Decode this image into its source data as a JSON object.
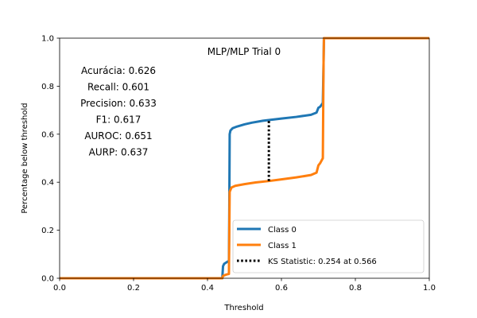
{
  "chart_data": {
    "type": "line",
    "title": "MLP/MLP Trial 0",
    "xlabel": "Threshold",
    "ylabel": "Percentage below threshold",
    "xlim": [
      0.0,
      1.0
    ],
    "ylim": [
      0.0,
      1.0
    ],
    "xticks": [
      "0.0",
      "0.2",
      "0.4",
      "0.6",
      "0.8",
      "1.0"
    ],
    "yticks": [
      "0.0",
      "0.2",
      "0.4",
      "0.6",
      "0.8",
      "1.0"
    ],
    "grid": false,
    "legend_position": "lower-right",
    "metrics": [
      "Acurácia: 0.626",
      "Recall: 0.601",
      "Precision: 0.633",
      "F1: 0.617",
      "AUROC: 0.651",
      "AURP: 0.637"
    ],
    "series": [
      {
        "name": "Class 0",
        "color": "#1f77b4",
        "points": [
          [
            0.0,
            0.0
          ],
          [
            0.44,
            0.0
          ],
          [
            0.442,
            0.05
          ],
          [
            0.445,
            0.06
          ],
          [
            0.45,
            0.065
          ],
          [
            0.455,
            0.07
          ],
          [
            0.458,
            0.07
          ],
          [
            0.459,
            0.3
          ],
          [
            0.46,
            0.6
          ],
          [
            0.462,
            0.615
          ],
          [
            0.468,
            0.625
          ],
          [
            0.48,
            0.632
          ],
          [
            0.5,
            0.641
          ],
          [
            0.52,
            0.648
          ],
          [
            0.55,
            0.656
          ],
          [
            0.566,
            0.659
          ],
          [
            0.6,
            0.665
          ],
          [
            0.64,
            0.672
          ],
          [
            0.68,
            0.681
          ],
          [
            0.695,
            0.69
          ],
          [
            0.7,
            0.71
          ],
          [
            0.705,
            0.715
          ],
          [
            0.712,
            0.73
          ],
          [
            0.714,
            0.9
          ],
          [
            0.715,
            1.0
          ],
          [
            1.0,
            1.0
          ]
        ]
      },
      {
        "name": "Class 1",
        "color": "#ff7f0e",
        "points": [
          [
            0.0,
            0.0
          ],
          [
            0.44,
            0.0
          ],
          [
            0.442,
            0.01
          ],
          [
            0.45,
            0.015
          ],
          [
            0.458,
            0.018
          ],
          [
            0.459,
            0.2
          ],
          [
            0.46,
            0.36
          ],
          [
            0.465,
            0.378
          ],
          [
            0.475,
            0.385
          ],
          [
            0.5,
            0.392
          ],
          [
            0.53,
            0.399
          ],
          [
            0.566,
            0.405
          ],
          [
            0.6,
            0.412
          ],
          [
            0.64,
            0.42
          ],
          [
            0.68,
            0.43
          ],
          [
            0.695,
            0.44
          ],
          [
            0.7,
            0.47
          ],
          [
            0.705,
            0.48
          ],
          [
            0.712,
            0.5
          ],
          [
            0.714,
            0.9
          ],
          [
            0.715,
            1.0
          ],
          [
            1.0,
            1.0
          ]
        ]
      }
    ],
    "ks_statistic": {
      "label": "KS Statistic: 0.254 at 0.566",
      "x": 0.566,
      "y_low": 0.405,
      "y_high": 0.659,
      "color": "#000000"
    }
  }
}
